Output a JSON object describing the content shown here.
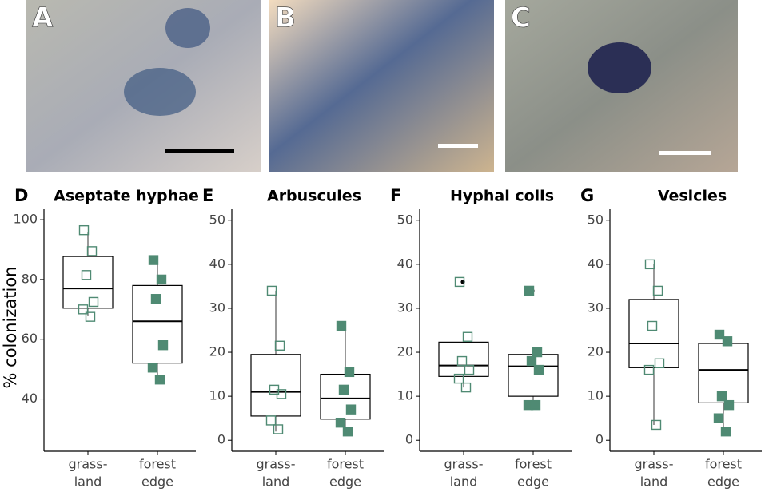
{
  "photo_panels": [
    {
      "label": "A"
    },
    {
      "label": "B"
    },
    {
      "label": "C"
    }
  ],
  "chart_data": [
    {
      "type": "box",
      "panel_label": "D",
      "title": "Aseptate hyphae",
      "ylabel": "% colonization",
      "categories": [
        [
          "grass-",
          "land"
        ],
        [
          "forest",
          "edge"
        ]
      ],
      "ylim": [
        22.5,
        103.5
      ],
      "yticks": [
        40,
        60,
        80,
        100
      ],
      "color": "#4f8a73",
      "boxes": [
        {
          "filled": false,
          "min": 67.7,
          "q1": 70.4,
          "median": 77,
          "q3": 87.7,
          "max": 95.7,
          "points": [
            96.5,
            89.5,
            81.5,
            72.5,
            70,
            67.5
          ],
          "outliers": []
        },
        {
          "filled": true,
          "min": 46.5,
          "q1": 52,
          "median": 66,
          "q3": 78,
          "max": 86,
          "points": [
            86.5,
            80,
            73.5,
            58,
            50.5,
            46.5
          ],
          "outliers": []
        }
      ]
    },
    {
      "type": "box",
      "panel_label": "E",
      "title": "Arbuscules",
      "categories": [
        [
          "grass-",
          "land"
        ],
        [
          "forest",
          "edge"
        ]
      ],
      "ylim": [
        -2.5,
        52.5
      ],
      "yticks": [
        0,
        10,
        20,
        30,
        40,
        50
      ],
      "color": "#4f8a73",
      "boxes": [
        {
          "filled": false,
          "min": 2,
          "q1": 5.5,
          "median": 11,
          "q3": 19.5,
          "max": 34,
          "points": [
            34,
            21.5,
            11.5,
            10.5,
            4.5,
            2.5
          ],
          "outliers": []
        },
        {
          "filled": true,
          "min": 2,
          "q1": 4.8,
          "median": 9.5,
          "q3": 15,
          "max": 26,
          "points": [
            26,
            15.5,
            11.5,
            7,
            4,
            2
          ],
          "outliers": []
        }
      ]
    },
    {
      "type": "box",
      "panel_label": "F",
      "title": "Hyphal coils",
      "categories": [
        [
          "grass-",
          "land"
        ],
        [
          "forest",
          "edge"
        ]
      ],
      "ylim": [
        -2.5,
        52.5
      ],
      "yticks": [
        0,
        10,
        20,
        30,
        40,
        50
      ],
      "color": "#4f8a73",
      "boxes": [
        {
          "filled": false,
          "min": 12,
          "q1": 14.5,
          "median": 17,
          "q3": 22.3,
          "max": 23.5,
          "points": [
            36,
            23.5,
            18,
            16,
            14,
            12
          ],
          "outliers": [
            36
          ]
        },
        {
          "filled": true,
          "min": 8,
          "q1": 10,
          "median": 16.8,
          "q3": 19.5,
          "max": 20,
          "points": [
            34,
            20,
            18,
            16,
            8,
            8
          ],
          "outliers": [
            34
          ]
        }
      ]
    },
    {
      "type": "box",
      "panel_label": "G",
      "title": "Vesicles",
      "categories": [
        [
          "grass-",
          "land"
        ],
        [
          "forest",
          "edge"
        ]
      ],
      "ylim": [
        -2.5,
        52.5
      ],
      "yticks": [
        0,
        10,
        20,
        30,
        40,
        50
      ],
      "color": "#4f8a73",
      "boxes": [
        {
          "filled": false,
          "min": 3.5,
          "q1": 16.5,
          "median": 22,
          "q3": 32,
          "max": 40,
          "points": [
            40,
            34,
            26,
            17.5,
            16,
            3.5
          ],
          "outliers": []
        },
        {
          "filled": true,
          "min": 2,
          "q1": 8.5,
          "median": 16,
          "q3": 22,
          "max": 24,
          "points": [
            24,
            22.5,
            10,
            8,
            5,
            2
          ],
          "outliers": []
        }
      ]
    }
  ]
}
